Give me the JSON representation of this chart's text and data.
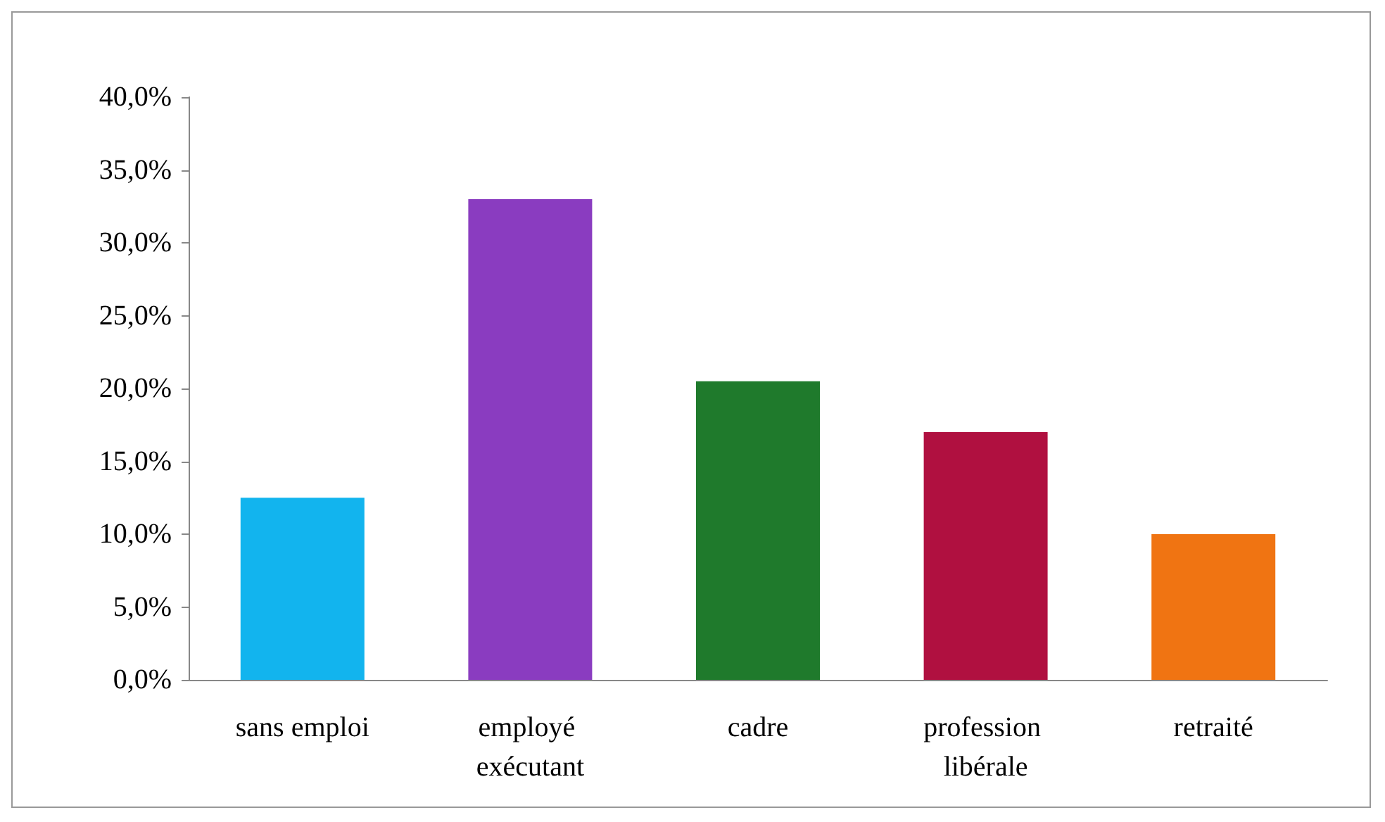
{
  "chart_data": {
    "type": "bar",
    "categories": [
      "sans emploi",
      "employé exécutant",
      "cadre",
      "profession libérale",
      "retraité"
    ],
    "values": [
      12.5,
      33.0,
      20.5,
      17.0,
      10.0
    ],
    "colors": [
      "#12b4ee",
      "#8a3cc0",
      "#1f7a2c",
      "#b01040",
      "#f07412"
    ],
    "ylim": [
      0,
      40
    ],
    "yticks": [
      {
        "value": 0,
        "label": "0,0%"
      },
      {
        "value": 5,
        "label": "5,0%"
      },
      {
        "value": 10,
        "label": "10,0%"
      },
      {
        "value": 15,
        "label": "15,0%"
      },
      {
        "value": 20,
        "label": "20,0%"
      },
      {
        "value": 25,
        "label": "25,0%"
      },
      {
        "value": 30,
        "label": "30,0%"
      },
      {
        "value": 35,
        "label": "35,0%"
      },
      {
        "value": 40,
        "label": "40,0%"
      }
    ],
    "grid": false
  }
}
